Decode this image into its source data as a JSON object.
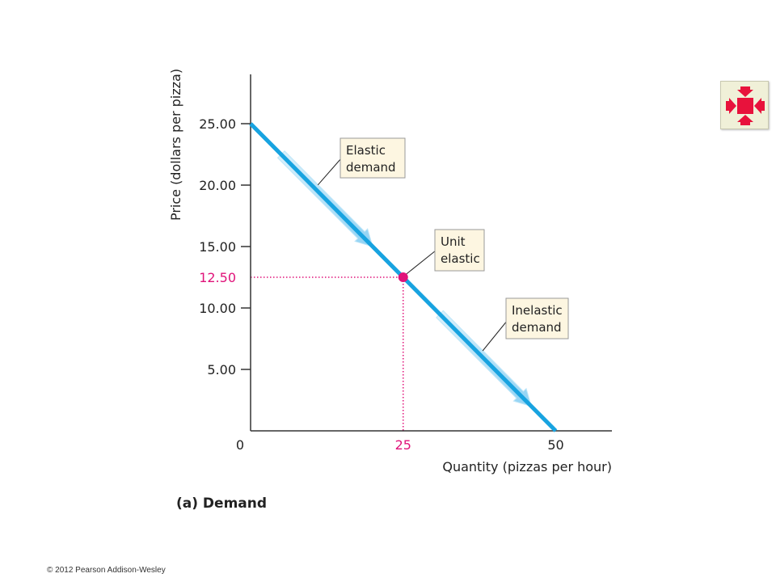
{
  "chart_data": {
    "type": "line",
    "xlabel": "Quantity (pizzas per hour)",
    "ylabel": "Price (dollars per pizza)",
    "xlim": [
      0,
      60
    ],
    "ylim": [
      0,
      30
    ],
    "x_ticks": [
      {
        "value": 0,
        "label": "0"
      },
      {
        "value": 25,
        "label": "25",
        "highlight": true
      },
      {
        "value": 50,
        "label": "50"
      }
    ],
    "y_ticks": [
      {
        "value": 25,
        "label": "25.00"
      },
      {
        "value": 20,
        "label": "20.00"
      },
      {
        "value": 15,
        "label": "15.00"
      },
      {
        "value": 12.5,
        "label": "12.50",
        "highlight": true
      },
      {
        "value": 10,
        "label": "10.00"
      },
      {
        "value": 5,
        "label": "5.00"
      }
    ],
    "series": [
      {
        "points": [
          [
            0,
            25
          ],
          [
            50,
            0
          ]
        ],
        "color": "#18a3e0"
      }
    ],
    "marked_point": {
      "x": 25,
      "y": 12.5,
      "color": "#e0137a"
    },
    "movement_arrows": [
      {
        "from": [
          5,
          22.5
        ],
        "to": [
          20,
          15
        ]
      },
      {
        "from": [
          31,
          9.5
        ],
        "to": [
          46,
          2
        ]
      }
    ],
    "annotations": [
      {
        "lines": [
          "Elastic",
          "demand"
        ],
        "points_to": [
          10.5,
          19.75
        ]
      },
      {
        "lines": [
          "Unit",
          "elastic"
        ],
        "points_to": [
          25,
          12.5
        ]
      },
      {
        "lines": [
          "Inelastic",
          "demand"
        ],
        "points_to": [
          37.5,
          6.25
        ]
      }
    ],
    "grid": false,
    "panel_label": "(a) Demand"
  },
  "nav_button": {
    "icon": "four-arrows-inward-icon",
    "color": "#e8123c"
  },
  "copyright": "© 2012 Pearson Addison-Wesley"
}
